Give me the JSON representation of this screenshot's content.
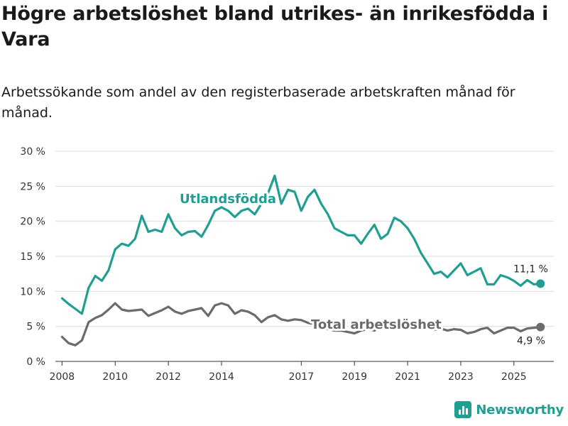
{
  "title": "Högre arbetslöshet bland utrikes- än inrikesfödda i Vara",
  "subtitle": "Arbetssökande som andel av den registerbaserade arbetskraften månad för månad.",
  "brand": {
    "name": "Newsworthy",
    "icon": "bar-chart-logo-icon"
  },
  "chart_data": {
    "type": "line",
    "title": "Högre arbetslöshet bland utrikes- än inrikesfödda i Vara",
    "xlabel": "",
    "ylabel": "",
    "ylim": [
      0,
      30
    ],
    "xlim": [
      2007.75,
      2026.5
    ],
    "yticks": [
      0,
      5,
      10,
      15,
      20,
      25,
      30
    ],
    "ytick_labels": [
      "0 %",
      "5 %",
      "10 %",
      "15 %",
      "20 %",
      "25 %",
      "30 %"
    ],
    "xticks": [
      2008,
      2010,
      2012,
      2014,
      2017,
      2019,
      2021,
      2023,
      2025
    ],
    "xtick_labels": [
      "2008",
      "2010",
      "2012",
      "2014",
      "2017",
      "2019",
      "2021",
      "2023",
      "2025"
    ],
    "grid": true,
    "series": [
      {
        "name": "Utlandsfödda",
        "color": "#1f9e92",
        "end_label": "11,1 %",
        "x": [
          2008.0,
          2008.25,
          2008.5,
          2008.75,
          2009.0,
          2009.25,
          2009.5,
          2009.75,
          2010.0,
          2010.25,
          2010.5,
          2010.75,
          2011.0,
          2011.25,
          2011.5,
          2011.75,
          2012.0,
          2012.25,
          2012.5,
          2012.75,
          2013.0,
          2013.25,
          2013.5,
          2013.75,
          2014.0,
          2014.25,
          2014.5,
          2014.75,
          2015.0,
          2015.25,
          2015.5,
          2015.75,
          2016.0,
          2016.25,
          2016.5,
          2016.75,
          2017.0,
          2017.25,
          2017.5,
          2017.75,
          2018.0,
          2018.25,
          2018.5,
          2018.75,
          2019.0,
          2019.25,
          2019.5,
          2019.75,
          2020.0,
          2020.25,
          2020.5,
          2020.75,
          2021.0,
          2021.25,
          2021.5,
          2021.75,
          2022.0,
          2022.25,
          2022.5,
          2022.75,
          2023.0,
          2023.25,
          2023.5,
          2023.75,
          2024.0,
          2024.25,
          2024.5,
          2024.75,
          2025.0,
          2025.25,
          2025.5,
          2025.75,
          2026.0
        ],
        "values": [
          9.0,
          8.2,
          7.5,
          6.8,
          10.5,
          12.2,
          11.5,
          13.0,
          16.0,
          16.8,
          16.5,
          17.5,
          20.8,
          18.5,
          18.8,
          18.5,
          21.0,
          19.0,
          18.0,
          18.5,
          18.6,
          17.8,
          19.5,
          21.5,
          22.0,
          21.5,
          20.6,
          21.5,
          21.8,
          21.0,
          22.5,
          24.0,
          26.5,
          22.5,
          24.5,
          24.2,
          21.5,
          23.5,
          24.5,
          22.5,
          21.0,
          19.0,
          18.5,
          18.0,
          18.0,
          16.8,
          18.2,
          19.5,
          17.5,
          18.2,
          20.5,
          20.0,
          19.0,
          17.5,
          15.5,
          14.0,
          12.5,
          12.8,
          12.0,
          13.0,
          14.0,
          12.3,
          12.8,
          13.3,
          11.0,
          11.0,
          12.3,
          12.0,
          11.5,
          10.8,
          11.6,
          11.0,
          11.1
        ]
      },
      {
        "name": "Total arbetslöshet",
        "color": "#6b6b6b",
        "end_label": "4,9 %",
        "x": [
          2008.0,
          2008.25,
          2008.5,
          2008.75,
          2009.0,
          2009.25,
          2009.5,
          2009.75,
          2010.0,
          2010.25,
          2010.5,
          2010.75,
          2011.0,
          2011.25,
          2011.5,
          2011.75,
          2012.0,
          2012.25,
          2012.5,
          2012.75,
          2013.0,
          2013.25,
          2013.5,
          2013.75,
          2014.0,
          2014.25,
          2014.5,
          2014.75,
          2015.0,
          2015.25,
          2015.5,
          2015.75,
          2016.0,
          2016.25,
          2016.5,
          2016.75,
          2017.0,
          2017.25,
          2017.5,
          2017.75,
          2018.0,
          2018.25,
          2018.5,
          2018.75,
          2019.0,
          2019.25,
          2019.5,
          2019.75,
          2020.0,
          2020.25,
          2020.5,
          2020.75,
          2021.0,
          2021.25,
          2021.5,
          2021.75,
          2022.0,
          2022.25,
          2022.5,
          2022.75,
          2023.0,
          2023.25,
          2023.5,
          2023.75,
          2024.0,
          2024.25,
          2024.5,
          2024.75,
          2025.0,
          2025.25,
          2025.5,
          2025.75,
          2026.0
        ],
        "values": [
          3.5,
          2.6,
          2.3,
          3.0,
          5.6,
          6.2,
          6.6,
          7.4,
          8.3,
          7.4,
          7.2,
          7.3,
          7.4,
          6.5,
          6.9,
          7.3,
          7.8,
          7.1,
          6.8,
          7.2,
          7.4,
          7.6,
          6.5,
          8.0,
          8.3,
          8.0,
          6.8,
          7.3,
          7.1,
          6.6,
          5.6,
          6.3,
          6.6,
          6.0,
          5.8,
          6.0,
          5.9,
          5.5,
          5.3,
          5.0,
          4.6,
          4.4,
          4.4,
          4.2,
          4.0,
          4.4,
          4.6,
          4.4,
          5.0,
          5.3,
          5.5,
          5.4,
          5.0,
          5.0,
          4.8,
          4.8,
          4.5,
          4.7,
          4.4,
          4.6,
          4.5,
          4.0,
          4.2,
          4.6,
          4.8,
          4.0,
          4.4,
          4.8,
          4.8,
          4.3,
          4.7,
          4.8,
          4.9
        ]
      }
    ]
  }
}
